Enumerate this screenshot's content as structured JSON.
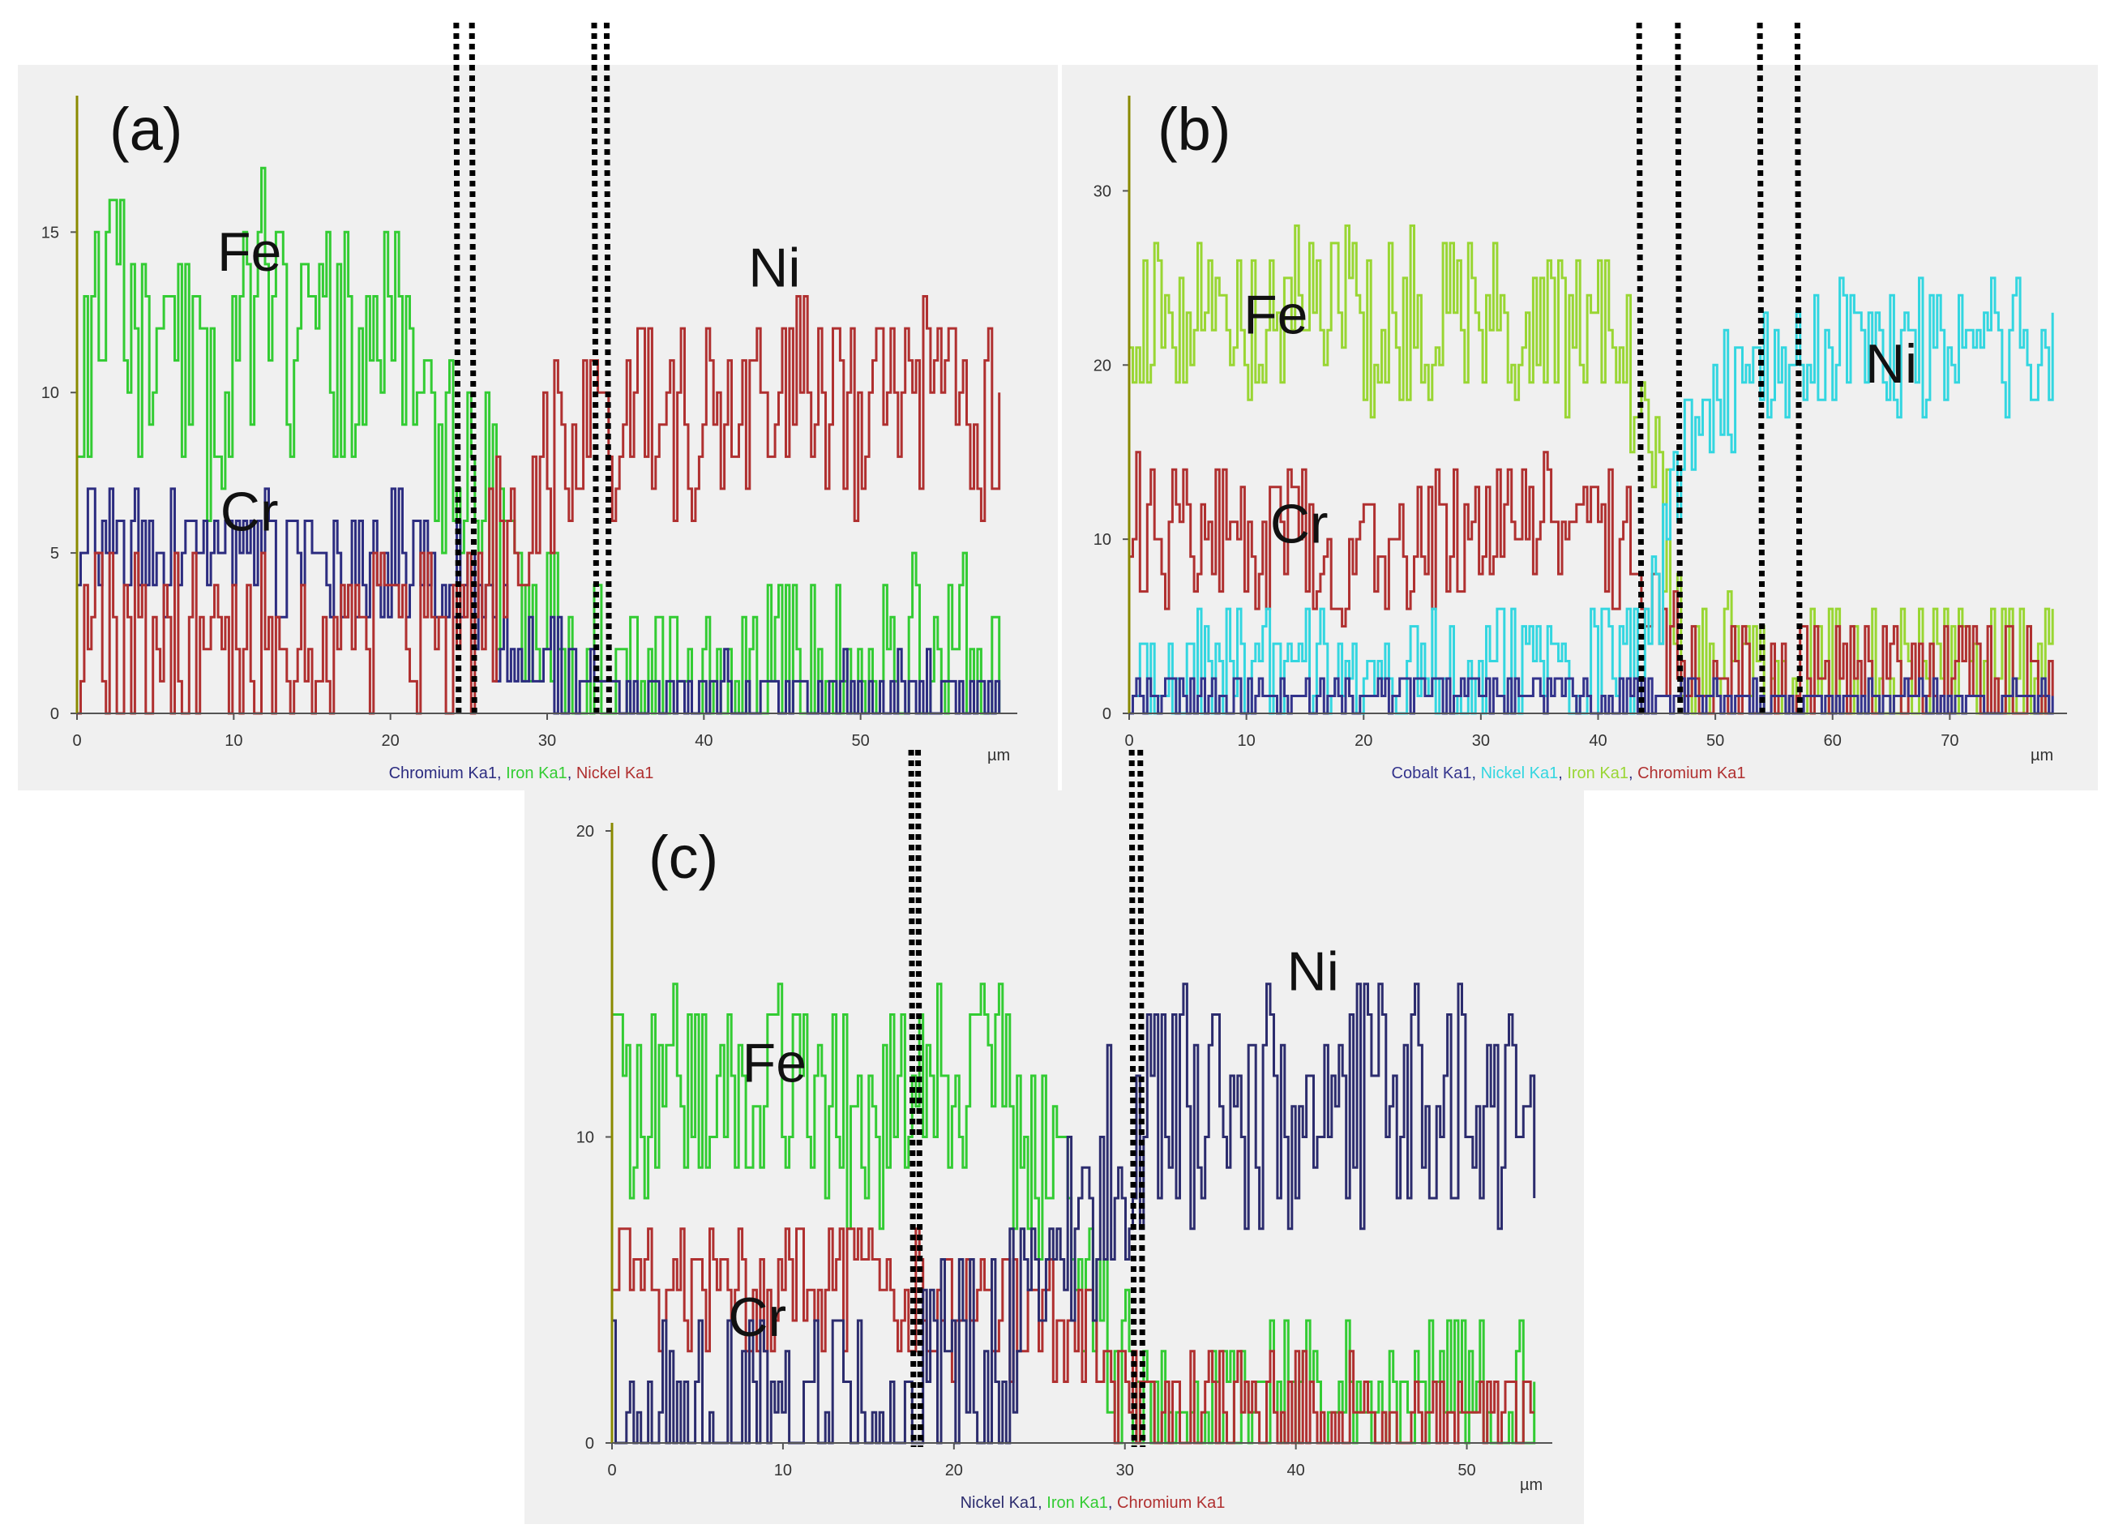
{
  "chart_data": [
    {
      "type": "line",
      "panel_label": "(a)",
      "x_unit": "µm",
      "xlim": [
        0,
        60
      ],
      "ylim": [
        0,
        19
      ],
      "x_ticks": [
        "0",
        "10",
        "20",
        "30",
        "40",
        "50"
      ],
      "y_ticks": [
        "0",
        "5",
        "10",
        "15"
      ],
      "annotations": [
        {
          "text": "Fe",
          "x": 11,
          "y": 13.8
        },
        {
          "text": "Ni",
          "x": 44.5,
          "y": 13.3
        },
        {
          "text": "Cr",
          "x": 11,
          "y": 5.7
        }
      ],
      "boundary_lines_x": [
        24.2,
        25.2,
        33.0,
        33.8
      ],
      "legend": [
        {
          "label": "Chromium Ka1",
          "color": "#2c2c80"
        },
        {
          "label": "Iron Ka1",
          "color": "#33cc33"
        },
        {
          "label": "Nickel Ka1",
          "color": "#b03030"
        }
      ],
      "series": [
        {
          "name": "Iron Ka1",
          "color": "#33cc33",
          "x": [
            0,
            2,
            4,
            6,
            8,
            10,
            12,
            14,
            16,
            18,
            20,
            22,
            24,
            26,
            28,
            30,
            32,
            34,
            36,
            40,
            45,
            50,
            55,
            59
          ],
          "y": [
            10,
            13,
            11,
            12,
            9,
            11,
            14,
            10,
            12,
            11,
            13,
            9,
            8,
            7,
            3,
            2,
            1.5,
            1,
            1,
            1,
            1,
            1.5,
            1.5,
            1
          ],
          "amp": 3.5,
          "seed": 11
        },
        {
          "name": "Chromium Ka1",
          "color": "#2c2c80",
          "x": [
            0,
            5,
            10,
            15,
            20,
            24,
            26,
            28,
            30,
            32,
            34,
            40,
            50,
            59
          ],
          "y": [
            5.5,
            5,
            5,
            4.5,
            5,
            4.5,
            3,
            2,
            1.5,
            1,
            0.5,
            0.5,
            0.5,
            0.5
          ],
          "amp": 1.8,
          "seed": 23
        },
        {
          "name": "Nickel Ka1",
          "color": "#b03030",
          "x": [
            0,
            5,
            10,
            15,
            20,
            24,
            26,
            28,
            30,
            32,
            34,
            40,
            45,
            50,
            55,
            59
          ],
          "y": [
            1.5,
            2,
            2,
            2,
            2.5,
            2.5,
            4,
            6,
            8,
            9,
            9,
            9.5,
            9.5,
            9.5,
            9.5,
            8.5
          ],
          "amp": 3.2,
          "seed": 37
        }
      ]
    },
    {
      "type": "line",
      "panel_label": "(b)",
      "x_unit": "µm",
      "xlim": [
        0,
        80
      ],
      "ylim": [
        0,
        35
      ],
      "x_ticks": [
        "0",
        "10",
        "20",
        "30",
        "40",
        "50",
        "60",
        "70"
      ],
      "y_ticks": [
        "0",
        "10",
        "20",
        "30"
      ],
      "annotations": [
        {
          "text": "Fe",
          "x": 12.5,
          "y": 21.8
        },
        {
          "text": "Ni",
          "x": 65,
          "y": 19
        },
        {
          "text": "Cr",
          "x": 14.5,
          "y": 9.8
        }
      ],
      "boundary_lines_x": [
        43.5,
        46.8,
        53.8,
        57.0
      ],
      "legend": [
        {
          "label": "Cobalt Ka1",
          "color": "#33338c"
        },
        {
          "label": "Nickel Ka1",
          "color": "#33d6e0"
        },
        {
          "label": "Iron Ka1",
          "color": "#99d633"
        },
        {
          "label": "Chromium Ka1",
          "color": "#b03030"
        }
      ],
      "series": [
        {
          "name": "Iron Ka1",
          "color": "#99d633",
          "x": [
            0,
            5,
            10,
            15,
            20,
            25,
            30,
            35,
            40,
            43,
            45,
            47,
            49,
            52,
            60,
            70,
            79
          ],
          "y": [
            22,
            24,
            23,
            24,
            22,
            23,
            22,
            21,
            22,
            20,
            12,
            6,
            3,
            1.5,
            1.5,
            1.5,
            1.5
          ],
          "amp": 5,
          "seed": 41
        },
        {
          "name": "Chromium Ka1",
          "color": "#b03030",
          "x": [
            0,
            5,
            10,
            15,
            20,
            25,
            30,
            35,
            40,
            43,
            45,
            47,
            49,
            52,
            60,
            70,
            79
          ],
          "y": [
            11,
            10,
            10,
            10,
            9,
            10,
            11,
            11,
            10,
            9,
            6,
            4,
            2.5,
            1.5,
            1.5,
            1.5,
            1.5
          ],
          "amp": 4,
          "seed": 53
        },
        {
          "name": "Nickel Ka1",
          "color": "#33d6e0",
          "x": [
            0,
            10,
            20,
            30,
            40,
            43,
            45,
            47,
            50,
            53,
            56,
            60,
            70,
            79
          ],
          "y": [
            2,
            2,
            2,
            2,
            2,
            3,
            7,
            14,
            18,
            19,
            20,
            21,
            21,
            21
          ],
          "amp": 4,
          "seed": 67
        },
        {
          "name": "Cobalt Ka1",
          "color": "#33338c",
          "x": [
            0,
            20,
            40,
            45,
            50,
            60,
            70,
            79
          ],
          "y": [
            1.2,
            1.2,
            1.2,
            1,
            0.8,
            0.8,
            0.8,
            0.8
          ],
          "amp": 1.2,
          "seed": 79
        }
      ]
    },
    {
      "type": "line",
      "panel_label": "(c)",
      "x_unit": "µm",
      "xlim": [
        0,
        55
      ],
      "ylim": [
        0,
        20
      ],
      "x_ticks": [
        "0",
        "10",
        "20",
        "30",
        "40",
        "50"
      ],
      "y_ticks": [
        "0",
        "10",
        "20"
      ],
      "annotations": [
        {
          "text": "Fe",
          "x": 9.5,
          "y": 11.8
        },
        {
          "text": "Ni",
          "x": 41,
          "y": 14.8
        },
        {
          "text": "Cr",
          "x": 8.5,
          "y": 3.5
        }
      ],
      "boundary_lines_x": [
        17.5,
        17.9,
        30.4,
        30.9
      ],
      "legend": [
        {
          "label": "Nickel Ka1",
          "color": "#2c2c6e"
        },
        {
          "label": "Iron Ka1",
          "color": "#33cc33"
        },
        {
          "label": "Chromium Ka1",
          "color": "#b03030"
        }
      ],
      "series": [
        {
          "name": "Iron Ka1",
          "color": "#33cc33",
          "x": [
            0,
            4,
            8,
            12,
            16,
            18,
            20,
            22,
            24,
            26,
            28,
            30,
            32,
            35,
            40,
            45,
            50,
            54
          ],
          "y": [
            11,
            12,
            12,
            11,
            10,
            12,
            11,
            12,
            10,
            8,
            5,
            2,
            1,
            1,
            1,
            1,
            1,
            1
          ],
          "amp": 3.5,
          "seed": 89
        },
        {
          "name": "Chromium Ka1",
          "color": "#b03030",
          "x": [
            0,
            4,
            8,
            12,
            16,
            18,
            20,
            24,
            28,
            30,
            32,
            35,
            40,
            45,
            50,
            54
          ],
          "y": [
            5.5,
            4.5,
            5,
            5,
            5,
            5,
            4.5,
            4,
            3,
            1.5,
            1,
            1,
            1,
            1,
            1,
            1
          ],
          "amp": 2.2,
          "seed": 97
        },
        {
          "name": "Nickel Ka1",
          "color": "#2c2c6e",
          "x": [
            0,
            5,
            10,
            15,
            18,
            20,
            22,
            25,
            28,
            30,
            32,
            35,
            40,
            45,
            50,
            54
          ],
          "y": [
            1,
            1,
            1,
            1,
            1.5,
            2,
            3,
            5,
            8,
            10,
            11,
            11.5,
            11,
            11,
            11,
            11
          ],
          "amp": 4,
          "seed": 103
        }
      ]
    }
  ]
}
